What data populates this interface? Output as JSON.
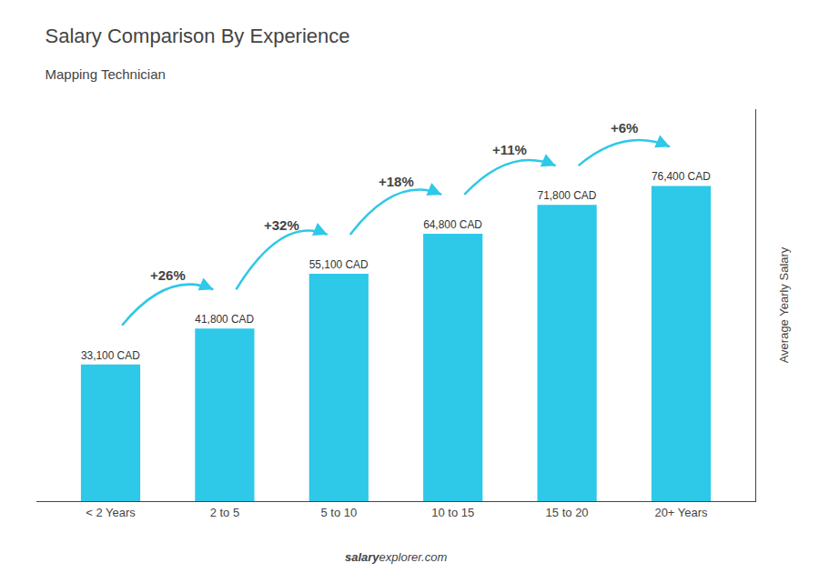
{
  "chart_data": {
    "type": "bar",
    "title": "Salary Comparison By Experience",
    "subtitle": "Mapping Technician",
    "ylabel": "Average Yearly Salary",
    "footer": [
      "salary",
      "explorer.com"
    ],
    "categories": [
      "< 2 Years",
      "2 to 5",
      "5 to 10",
      "10 to 15",
      "15 to 20",
      "20+ Years"
    ],
    "values": [
      33100,
      41800,
      55100,
      64800,
      71800,
      76400
    ],
    "value_labels": [
      "33,100 CAD",
      "41,800 CAD",
      "55,100 CAD",
      "64,800 CAD",
      "71,800 CAD",
      "76,400 CAD"
    ],
    "data_labels": true,
    "annotations": [
      {
        "from": "< 2 Years",
        "to": "2 to 5",
        "text": "+26%"
      },
      {
        "from": "2 to 5",
        "to": "5 to 10",
        "text": "+32%"
      },
      {
        "from": "5 to 10",
        "to": "10 to 15",
        "text": "+18%"
      },
      {
        "from": "10 to 15",
        "to": "15 to 20",
        "text": "+11%"
      },
      {
        "from": "15 to 20",
        "to": "20+ Years",
        "text": "+6%"
      }
    ],
    "color": "#2ec8e8",
    "ylim": [
      0,
      95000
    ],
    "tick_labels": "x",
    "grid": false,
    "legend": false
  }
}
